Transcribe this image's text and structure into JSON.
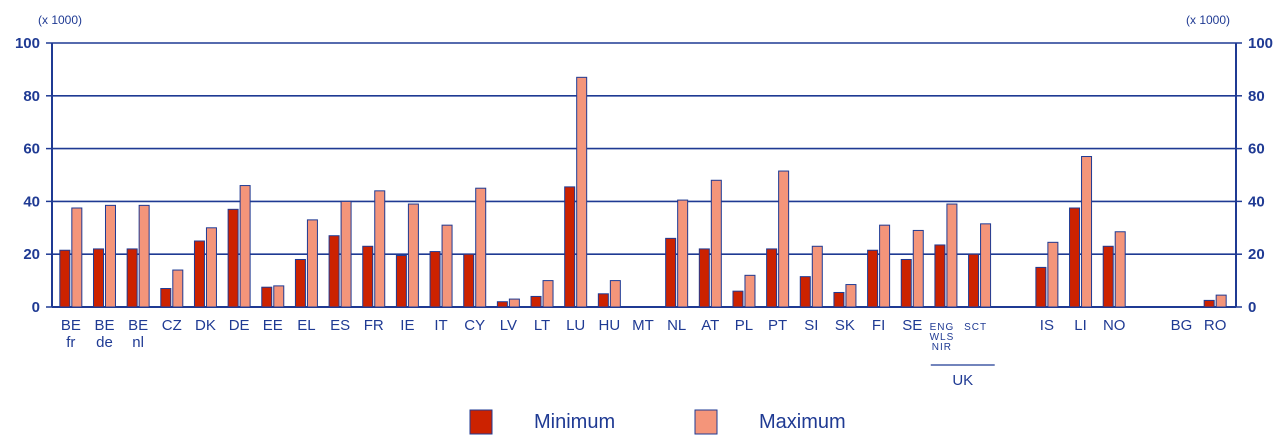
{
  "chart_data": {
    "type": "bar",
    "unit_label": "(x 1000)",
    "ylim": [
      0,
      100
    ],
    "yticks": [
      0,
      20,
      40,
      60,
      80,
      100
    ],
    "grid": true,
    "legend_position": "bottom",
    "categories": [
      {
        "id": "BE-fr",
        "label": [
          "BE",
          "fr"
        ],
        "min": 21.5,
        "max": 37.5
      },
      {
        "id": "BE-de",
        "label": [
          "BE",
          "de"
        ],
        "min": 22,
        "max": 38.5
      },
      {
        "id": "BE-nl",
        "label": [
          "BE",
          "nl"
        ],
        "min": 22,
        "max": 38.5
      },
      {
        "id": "CZ",
        "label": [
          "CZ"
        ],
        "min": 7,
        "max": 14
      },
      {
        "id": "DK",
        "label": [
          "DK"
        ],
        "min": 25,
        "max": 30
      },
      {
        "id": "DE",
        "label": [
          "DE"
        ],
        "min": 37,
        "max": 46
      },
      {
        "id": "EE",
        "label": [
          "EE"
        ],
        "min": 7.5,
        "max": 8
      },
      {
        "id": "EL",
        "label": [
          "EL"
        ],
        "min": 18,
        "max": 33
      },
      {
        "id": "ES",
        "label": [
          "ES"
        ],
        "min": 27,
        "max": 40
      },
      {
        "id": "FR",
        "label": [
          "FR"
        ],
        "min": 23,
        "max": 44
      },
      {
        "id": "IE",
        "label": [
          "IE"
        ],
        "min": 19.5,
        "max": 39
      },
      {
        "id": "IT",
        "label": [
          "IT"
        ],
        "min": 21,
        "max": 31
      },
      {
        "id": "CY",
        "label": [
          "CY"
        ],
        "min": 20,
        "max": 45
      },
      {
        "id": "LV",
        "label": [
          "LV"
        ],
        "min": 2,
        "max": 3
      },
      {
        "id": "LT",
        "label": [
          "LT"
        ],
        "min": 4,
        "max": 10
      },
      {
        "id": "LU",
        "label": [
          "LU"
        ],
        "min": 45.5,
        "max": 87
      },
      {
        "id": "HU",
        "label": [
          "HU"
        ],
        "min": 5,
        "max": 10
      },
      {
        "id": "MT",
        "label": [
          "MT"
        ],
        "min": 0,
        "max": 0
      },
      {
        "id": "NL",
        "label": [
          "NL"
        ],
        "min": 26,
        "max": 40.5
      },
      {
        "id": "AT",
        "label": [
          "AT"
        ],
        "min": 22,
        "max": 48
      },
      {
        "id": "PL",
        "label": [
          "PL"
        ],
        "min": 6,
        "max": 12
      },
      {
        "id": "PT",
        "label": [
          "PT"
        ],
        "min": 22,
        "max": 51.5
      },
      {
        "id": "SI",
        "label": [
          "SI"
        ],
        "min": 11.5,
        "max": 23
      },
      {
        "id": "SK",
        "label": [
          "SK"
        ],
        "min": 5.5,
        "max": 8.5
      },
      {
        "id": "FI",
        "label": [
          "FI"
        ],
        "min": 21.5,
        "max": 31
      },
      {
        "id": "SE",
        "label": [
          "SE"
        ],
        "min": 18,
        "max": 29
      },
      {
        "id": "UK-ENG-WLS-NIR",
        "label": [
          "ENG",
          "WLS",
          "NIR"
        ],
        "small": true,
        "min": 23.5,
        "max": 39
      },
      {
        "id": "UK-SCT",
        "label": [
          "SCT"
        ],
        "small": true,
        "min": 20,
        "max": 31.5
      },
      {
        "id": "gap-1",
        "label": [],
        "min": 0,
        "max": 0
      },
      {
        "id": "IS",
        "label": [
          "IS"
        ],
        "min": 15,
        "max": 24.5
      },
      {
        "id": "LI",
        "label": [
          "LI"
        ],
        "min": 37.5,
        "max": 57
      },
      {
        "id": "NO",
        "label": [
          "NO"
        ],
        "min": 23,
        "max": 28.5
      },
      {
        "id": "gap-2",
        "label": [],
        "min": 0,
        "max": 0
      },
      {
        "id": "BG",
        "label": [
          "BG"
        ],
        "min": 0,
        "max": 0
      },
      {
        "id": "RO",
        "label": [
          "RO"
        ],
        "min": 2.5,
        "max": 4.5
      }
    ],
    "group_labels": [
      {
        "label": "UK",
        "from": "UK-ENG-WLS-NIR",
        "to": "UK-SCT"
      }
    ],
    "series": [
      {
        "name": "Minimum",
        "key": "min",
        "color": "#cc2200"
      },
      {
        "name": "Maximum",
        "key": "max",
        "color": "#f4957a"
      }
    ]
  }
}
